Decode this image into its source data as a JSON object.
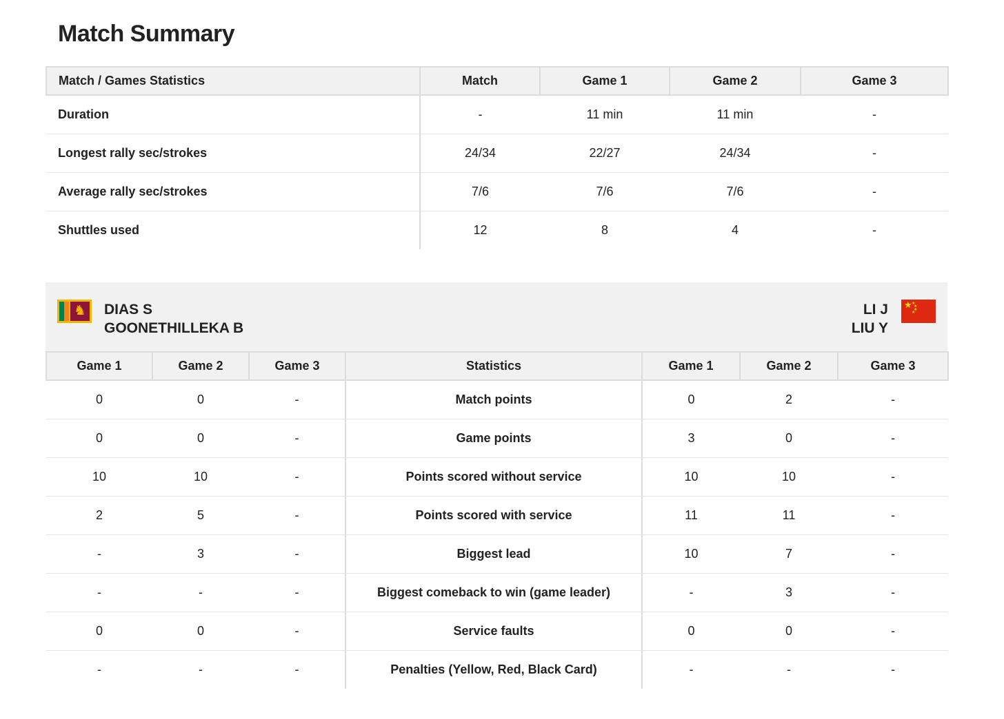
{
  "page": {
    "title": "Match Summary"
  },
  "summary": {
    "headers": [
      "Match / Games Statistics",
      "Match",
      "Game 1",
      "Game 2",
      "Game 3"
    ],
    "rows": [
      {
        "label": "Duration",
        "values": [
          "-",
          "11 min",
          "11 min",
          "-"
        ]
      },
      {
        "label": "Longest rally sec/strokes",
        "values": [
          "24/34",
          "22/27",
          "24/34",
          "-"
        ]
      },
      {
        "label": "Average rally sec/strokes",
        "values": [
          "7/6",
          "7/6",
          "7/6",
          "-"
        ]
      },
      {
        "label": "Shuttles used",
        "values": [
          "12",
          "8",
          "4",
          "-"
        ]
      }
    ]
  },
  "teams": {
    "left": {
      "players": [
        "DIAS S",
        "GOONETHILLEKA B"
      ],
      "flag": "sri-lanka-flag"
    },
    "right": {
      "players": [
        "LI J",
        "LIU Y"
      ],
      "flag": "china-flag"
    }
  },
  "colors": {
    "header_bg": "#f1f1f1",
    "border": "#dcdcdc",
    "text": "#222222"
  },
  "stats": {
    "headers": [
      "Game 1",
      "Game 2",
      "Game 3",
      "Statistics",
      "Game 1",
      "Game 2",
      "Game 3"
    ],
    "rows": [
      {
        "left": [
          "0",
          "0",
          "-"
        ],
        "label": "Match points",
        "right": [
          "0",
          "2",
          "-"
        ]
      },
      {
        "left": [
          "0",
          "0",
          "-"
        ],
        "label": "Game points",
        "right": [
          "3",
          "0",
          "-"
        ]
      },
      {
        "left": [
          "10",
          "10",
          "-"
        ],
        "label": "Points scored without service",
        "right": [
          "10",
          "10",
          "-"
        ]
      },
      {
        "left": [
          "2",
          "5",
          "-"
        ],
        "label": "Points scored with service",
        "right": [
          "11",
          "11",
          "-"
        ]
      },
      {
        "left": [
          "-",
          "3",
          "-"
        ],
        "label": "Biggest lead",
        "right": [
          "10",
          "7",
          "-"
        ]
      },
      {
        "left": [
          "-",
          "-",
          "-"
        ],
        "label": "Biggest comeback to win (game leader)",
        "right": [
          "-",
          "3",
          "-"
        ]
      },
      {
        "left": [
          "0",
          "0",
          "-"
        ],
        "label": "Service faults",
        "right": [
          "0",
          "0",
          "-"
        ]
      },
      {
        "left": [
          "-",
          "-",
          "-"
        ],
        "label": "Penalties (Yellow, Red, Black Card)",
        "right": [
          "-",
          "-",
          "-"
        ]
      }
    ]
  }
}
